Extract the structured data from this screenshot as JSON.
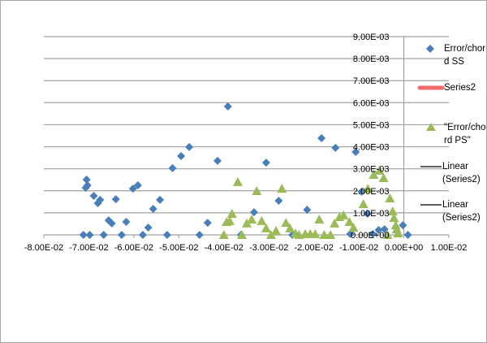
{
  "chart_data": {
    "type": "scatter",
    "title": "",
    "xlabel": "",
    "ylabel": "",
    "xlim": [
      -0.08,
      0.01
    ],
    "ylim": [
      0,
      0.009
    ],
    "x_ticks": [
      -0.08,
      -0.07,
      -0.06,
      -0.05,
      -0.04,
      -0.03,
      -0.02,
      -0.01,
      0,
      0.01
    ],
    "x_tick_labels": [
      "-8.00E-02",
      "-7.00E-02",
      "-6.00E-02",
      "-5.00E-02",
      "-4.00E-02",
      "-3.00E-02",
      "-2.00E-02",
      "-1.00E-02",
      "0.00E+00",
      "1.00E-02"
    ],
    "y_ticks": [
      0,
      0.001,
      0.002,
      0.003,
      0.004,
      0.005,
      0.006,
      0.007,
      0.008,
      0.009
    ],
    "y_tick_labels": [
      "0.00E+00",
      "1.00E-03",
      "2.00E-03",
      "3.00E-03",
      "4.00E-03",
      "5.00E-03",
      "6.00E-03",
      "7.00E-03",
      "8.00E-03",
      "9.00E-03"
    ],
    "grid": "horizontal",
    "legend_position": "right",
    "colors": {
      "ss": "#4a7ebb",
      "series2": "#f46b6b",
      "ps": "#9bbb59",
      "linear": "#000000",
      "grid": "#a0a0a0"
    },
    "legend": [
      {
        "label": "Error/chord SS",
        "marker": "diamond"
      },
      {
        "label": "Series2",
        "marker": "line-red"
      },
      {
        "label": "\"Error/chord PS\"",
        "marker": "triangle"
      },
      {
        "label": "Linear (Series2)",
        "marker": "line-black"
      },
      {
        "label": "Linear (Series2)",
        "marker": "line-black"
      }
    ],
    "series": [
      {
        "name": "Error/chord SS",
        "marker": "diamond",
        "points_x_e-2_y_e-3": [
          [
            -7.12,
            0
          ],
          [
            -6.98,
            0
          ],
          [
            -7.05,
            2.51
          ],
          [
            -7.07,
            2.14
          ],
          [
            -7.03,
            2.25
          ],
          [
            -6.89,
            1.77
          ],
          [
            -6.8,
            1.44
          ],
          [
            -6.75,
            1.59
          ],
          [
            -6.67,
            0
          ],
          [
            -6.4,
            1.62
          ],
          [
            -6.56,
            0.66
          ],
          [
            -6.49,
            0.52
          ],
          [
            -6.27,
            0
          ],
          [
            -6.17,
            0.59
          ],
          [
            -6.02,
            2.1
          ],
          [
            -5.91,
            2.25
          ],
          [
            -5.8,
            0
          ],
          [
            -5.68,
            0.33
          ],
          [
            -5.57,
            1.18
          ],
          [
            -5.42,
            1.59
          ],
          [
            -5.26,
            0
          ],
          [
            -5.14,
            3.03
          ],
          [
            -4.95,
            3.58
          ],
          [
            -4.77,
            3.99
          ],
          [
            -4.14,
            3.36
          ],
          [
            -4.36,
            0.55
          ],
          [
            -4.54,
            0
          ],
          [
            -3.91,
            5.83
          ],
          [
            -3.62,
            0
          ],
          [
            -3.33,
            1.03
          ],
          [
            -3.06,
            3.28
          ],
          [
            -2.78,
            1.55
          ],
          [
            -2.48,
            0
          ],
          [
            -2.15,
            1.14
          ],
          [
            -1.83,
            4.39
          ],
          [
            -1.52,
            3.95
          ],
          [
            -1.19,
            0.04
          ],
          [
            -1.07,
            3.76
          ],
          [
            -0.94,
            1.96
          ],
          [
            -0.81,
            0.96
          ],
          [
            -0.69,
            0.04
          ],
          [
            -0.56,
            0.22
          ],
          [
            -0.43,
            0.26
          ],
          [
            -0.02,
            0.44
          ],
          [
            0.09,
            0
          ]
        ]
      },
      {
        "name": "\"Error/chord PS\"",
        "marker": "triangle",
        "points_x_e-2_y_e-3": [
          [
            -4.0,
            0
          ],
          [
            -3.94,
            0.59
          ],
          [
            -3.87,
            0.63
          ],
          [
            -3.82,
            0.96
          ],
          [
            -3.69,
            2.4
          ],
          [
            -3.6,
            0
          ],
          [
            -3.49,
            0.52
          ],
          [
            -3.38,
            0.7
          ],
          [
            -3.27,
            1.99
          ],
          [
            -3.16,
            0.63
          ],
          [
            -3.06,
            0.3
          ],
          [
            -2.95,
            0
          ],
          [
            -2.84,
            0.18
          ],
          [
            -2.71,
            2.1
          ],
          [
            -2.62,
            0.55
          ],
          [
            -2.53,
            0.3
          ],
          [
            -2.41,
            0.07
          ],
          [
            -2.33,
            0
          ],
          [
            -2.19,
            0.04
          ],
          [
            -2.08,
            0.04
          ],
          [
            -1.97,
            0.04
          ],
          [
            -1.88,
            0.7
          ],
          [
            -1.77,
            0
          ],
          [
            -1.63,
            0
          ],
          [
            -1.54,
            0.52
          ],
          [
            -1.43,
            0.81
          ],
          [
            -1.34,
            0.89
          ],
          [
            -1.21,
            0.59
          ],
          [
            -1.12,
            0.33
          ],
          [
            -0.9,
            1.4
          ],
          [
            -0.8,
            2.1
          ],
          [
            -0.67,
            2.73
          ],
          [
            -0.54,
            2.92
          ],
          [
            -0.45,
            2.58
          ],
          [
            -0.31,
            1.66
          ],
          [
            -0.25,
            1.07
          ],
          [
            -0.22,
            0.77
          ],
          [
            -0.18,
            0.44
          ],
          [
            -0.16,
            0.26
          ],
          [
            -0.13,
            0.07
          ],
          [
            -0.36,
            0
          ]
        ]
      }
    ]
  }
}
